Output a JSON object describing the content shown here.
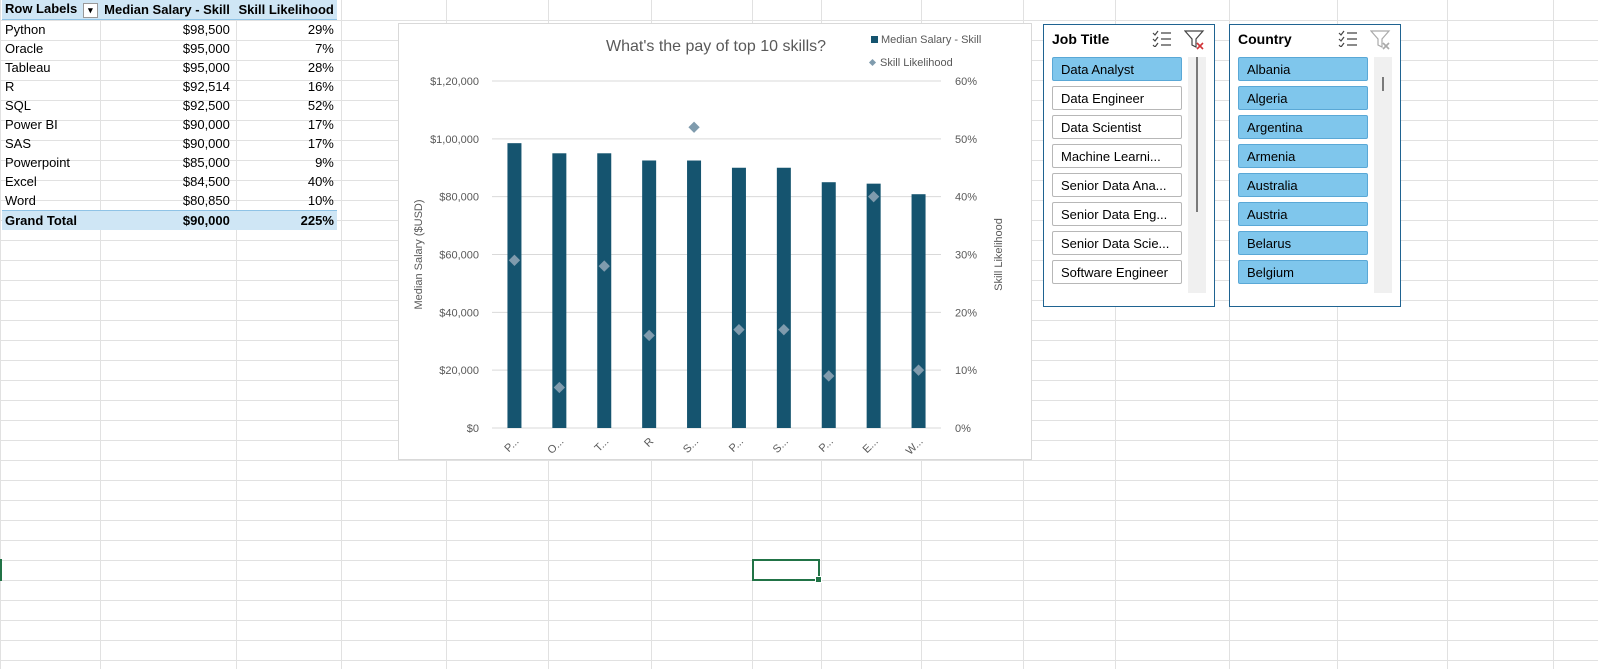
{
  "pivot": {
    "headers": {
      "row_labels": "Row Labels",
      "median_salary": "Median Salary - Skill",
      "likelihood": "Skill Likelihood"
    },
    "rows": [
      {
        "skill": "Python",
        "salary": "$98,500",
        "likelihood": "29%"
      },
      {
        "skill": "Oracle",
        "salary": "$95,000",
        "likelihood": "7%"
      },
      {
        "skill": "Tableau",
        "salary": "$95,000",
        "likelihood": "28%"
      },
      {
        "skill": "R",
        "salary": "$92,514",
        "likelihood": "16%"
      },
      {
        "skill": "SQL",
        "salary": "$92,500",
        "likelihood": "52%"
      },
      {
        "skill": "Power BI",
        "salary": "$90,000",
        "likelihood": "17%"
      },
      {
        "skill": "SAS",
        "salary": "$90,000",
        "likelihood": "17%"
      },
      {
        "skill": "Powerpoint",
        "salary": "$85,000",
        "likelihood": "9%"
      },
      {
        "skill": "Excel",
        "salary": "$84,500",
        "likelihood": "40%"
      },
      {
        "skill": "Word",
        "salary": "$80,850",
        "likelihood": "10%"
      }
    ],
    "total": {
      "label": "Grand Total",
      "salary": "$90,000",
      "likelihood": "225%"
    }
  },
  "chart_data": {
    "type": "bar",
    "title": "What's the pay of top 10 skills?",
    "categories": [
      "P...",
      "O...",
      "T...",
      "R",
      "S...",
      "P...",
      "S...",
      "P...",
      "E...",
      "W..."
    ],
    "series": [
      {
        "name": "Median Salary - Skill",
        "kind": "bar",
        "axis": "left",
        "color": "#15546f",
        "values": [
          98500,
          95000,
          95000,
          92514,
          92500,
          90000,
          90000,
          85000,
          84500,
          80850
        ]
      },
      {
        "name": "Skill Likelihood",
        "kind": "marker",
        "axis": "right",
        "color": "#7f9bad",
        "values": [
          29,
          7,
          28,
          16,
          52,
          17,
          17,
          9,
          40,
          10
        ]
      }
    ],
    "ylabel": "Median Salary ($USD)",
    "y2label": "Skill Likelihood",
    "ylim": [
      0,
      120000
    ],
    "y2lim": [
      0,
      60
    ],
    "yticks": [
      "$0",
      "$20,000",
      "$40,000",
      "$60,000",
      "$80,000",
      "$1,00,000",
      "$1,20,000"
    ],
    "y2ticks": [
      "0%",
      "10%",
      "20%",
      "30%",
      "40%",
      "50%",
      "60%"
    ],
    "grid": true,
    "legend_position": "top-right"
  },
  "slicers": {
    "job_title": {
      "title": "Job Title",
      "items": [
        {
          "label": "Data Analyst",
          "selected": true
        },
        {
          "label": "Data Engineer",
          "selected": false
        },
        {
          "label": "Data Scientist",
          "selected": false
        },
        {
          "label": "Machine Learni...",
          "selected": false
        },
        {
          "label": "Senior Data Ana...",
          "selected": false
        },
        {
          "label": "Senior Data Eng...",
          "selected": false
        },
        {
          "label": "Senior Data Scie...",
          "selected": false
        },
        {
          "label": "Software Engineer",
          "selected": false
        }
      ]
    },
    "country": {
      "title": "Country",
      "items": [
        {
          "label": "Albania",
          "selected": true
        },
        {
          "label": "Algeria",
          "selected": true
        },
        {
          "label": "Argentina",
          "selected": true
        },
        {
          "label": "Armenia",
          "selected": true
        },
        {
          "label": "Australia",
          "selected": true
        },
        {
          "label": "Austria",
          "selected": true
        },
        {
          "label": "Belarus",
          "selected": true
        },
        {
          "label": "Belgium",
          "selected": true
        }
      ]
    }
  }
}
